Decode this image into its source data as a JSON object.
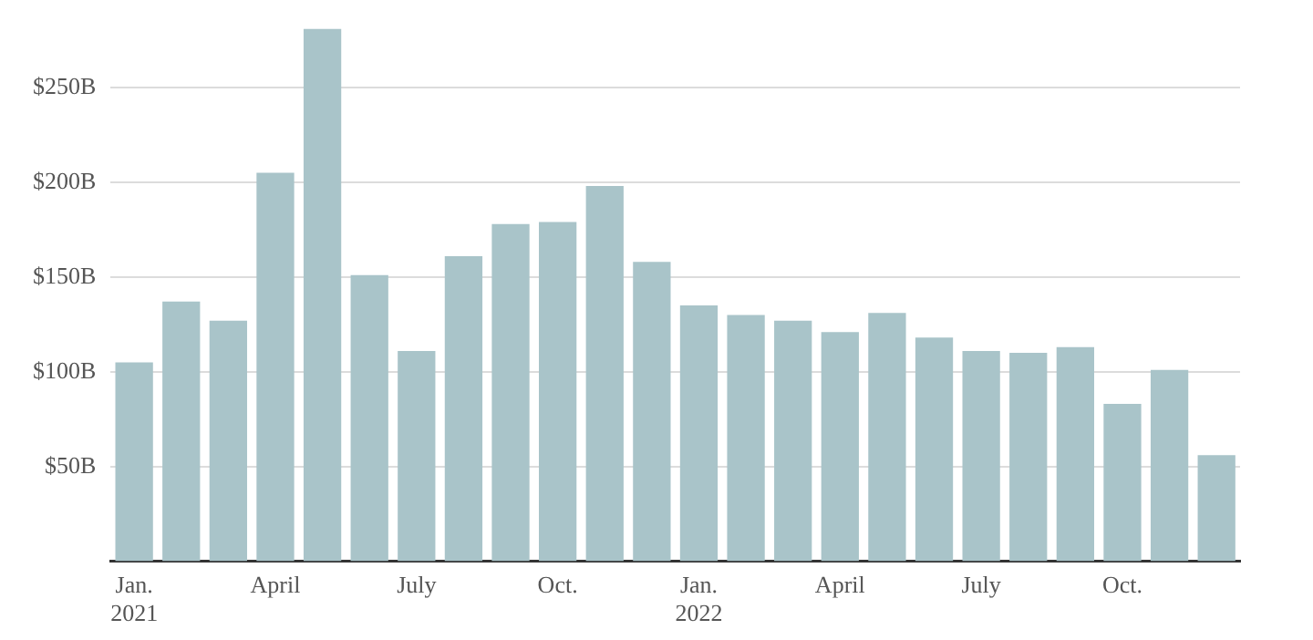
{
  "chart_data": {
    "type": "bar",
    "categories": [
      "Jan.\n2021",
      null,
      null,
      "April",
      null,
      null,
      "July",
      null,
      null,
      "Oct.",
      null,
      null,
      "Jan.\n2022",
      null,
      null,
      "April",
      null,
      null,
      "July",
      null,
      null,
      "Oct.",
      null,
      null
    ],
    "values": [
      105,
      137,
      127,
      205,
      281,
      151,
      111,
      161,
      178,
      179,
      198,
      158,
      135,
      130,
      127,
      121,
      131,
      118,
      111,
      110,
      113,
      83,
      101,
      56
    ],
    "color": "#a9c4c9",
    "ylim": [
      0,
      281
    ],
    "yticks": [
      {
        "value": 50,
        "label": "$50B"
      },
      {
        "value": 100,
        "label": "$100B"
      },
      {
        "value": 150,
        "label": "$150B"
      },
      {
        "value": 200,
        "label": "$200B"
      },
      {
        "value": 250,
        "label": "$250B"
      }
    ],
    "grid": "y"
  }
}
